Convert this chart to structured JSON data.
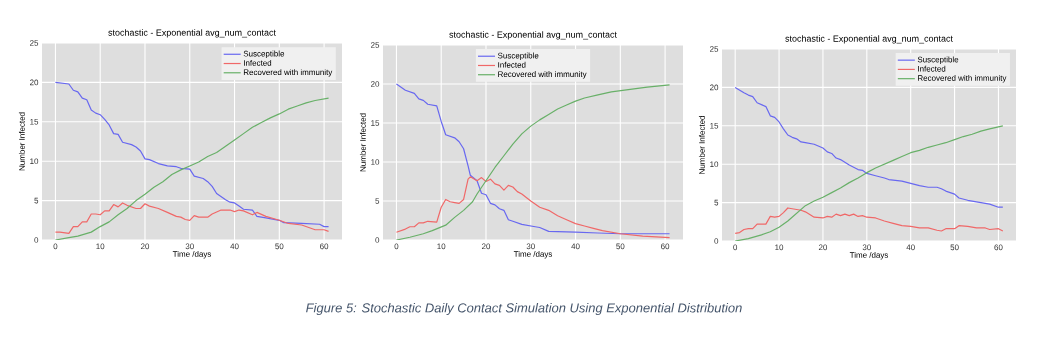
{
  "chart_data": [
    {
      "type": "line",
      "title": "stochastic - Exponential avg_num_contact",
      "xlabel": "Time /days",
      "ylabel": "Number Infected",
      "xlim": [
        -3,
        64
      ],
      "xticks": [
        0,
        10,
        20,
        30,
        40,
        50,
        60
      ],
      "ylim": [
        0,
        25
      ],
      "yticks": [
        0,
        5,
        10,
        15,
        20,
        25
      ],
      "grid": true,
      "legend": "top right",
      "marker": "none",
      "line_style": "solid",
      "annotations": [
        "Figure 5: Stochastic Daily Contact Simulation Using Exponential Distribution"
      ],
      "series": [
        {
          "name": "Susceptible",
          "color": "#6868f0",
          "x": [
            0,
            3,
            4,
            5,
            6,
            7,
            8,
            9,
            10,
            11,
            12,
            13,
            14,
            15,
            17,
            18,
            19,
            20,
            21,
            23,
            25,
            27,
            28,
            30,
            31,
            33,
            34,
            35,
            36,
            38,
            39,
            40,
            41,
            42,
            44,
            45,
            47,
            50,
            51,
            55,
            59,
            60,
            61
          ],
          "values": [
            20,
            19.8,
            19,
            18.8,
            18,
            17.8,
            16.5,
            16.1,
            15.9,
            15.3,
            14.6,
            13.5,
            13.4,
            12.4,
            12.1,
            11.8,
            11.3,
            10.3,
            10.2,
            9.7,
            9.4,
            9.3,
            9.1,
            9,
            8.1,
            7.8,
            7.4,
            6.8,
            5.9,
            5.1,
            4.8,
            4.7,
            4.3,
            3.9,
            3.8,
            3,
            2.8,
            2.5,
            2.2,
            2.1,
            2,
            1.7,
            1.7
          ]
        },
        {
          "name": "Infected",
          "color": "#f06868",
          "x": [
            0,
            1,
            3,
            4,
            5,
            6,
            7,
            8,
            9,
            10,
            11,
            12,
            13,
            14,
            15,
            16,
            18,
            19,
            20,
            21,
            23,
            25,
            27,
            28,
            29,
            30,
            31,
            32,
            34,
            35,
            37,
            39,
            40,
            41,
            42,
            44,
            45,
            47,
            50,
            52,
            55,
            58,
            60,
            61
          ],
          "values": [
            1,
            1,
            0.85,
            1.7,
            1.7,
            2.3,
            2.3,
            3.3,
            3.3,
            3.2,
            3.7,
            3.7,
            4.5,
            4.2,
            4.7,
            4.4,
            4,
            4,
            4.6,
            4.3,
            4,
            3.5,
            3,
            2.9,
            2.6,
            2.5,
            3.1,
            2.9,
            2.9,
            3.3,
            3.8,
            3.8,
            3.6,
            3.8,
            3.7,
            3.2,
            3.5,
            3,
            2.5,
            2.1,
            1.9,
            1.3,
            1.3,
            1.1
          ]
        },
        {
          "name": "Recovered with immunity",
          "color": "#68b068",
          "x": [
            0,
            3,
            5,
            8,
            10,
            12,
            14,
            16,
            18,
            20,
            22,
            24,
            26,
            28,
            30,
            32,
            34,
            36,
            38,
            40,
            42,
            44,
            46,
            48,
            50,
            52,
            54,
            56,
            58,
            61
          ],
          "values": [
            0,
            0.3,
            0.5,
            1,
            1.7,
            2.3,
            3.2,
            4,
            5,
            5.8,
            6.7,
            7.4,
            8.3,
            8.9,
            9.4,
            9.9,
            10.6,
            11.1,
            11.9,
            12.7,
            13.5,
            14.3,
            14.9,
            15.5,
            16,
            16.6,
            17,
            17.4,
            17.7,
            18
          ]
        }
      ]
    },
    {
      "type": "line",
      "title": "stochastic - Exponential avg_num_contact",
      "xlabel": "Time /days",
      "ylabel": "Number Infected",
      "xlim": [
        -3,
        64
      ],
      "xticks": [
        0,
        10,
        20,
        30,
        40,
        50,
        60
      ],
      "ylim": [
        0,
        25
      ],
      "yticks": [
        0,
        5,
        10,
        15,
        20,
        25
      ],
      "grid": true,
      "legend": "top",
      "marker": "none",
      "line_style": "solid",
      "series": [
        {
          "name": "Susceptible",
          "color": "#6868f0",
          "x": [
            0,
            2,
            4,
            5,
            6,
            7,
            9,
            10,
            11,
            13,
            14,
            15,
            16,
            16.5,
            18,
            19,
            20,
            21,
            22,
            23,
            24,
            25,
            26,
            28,
            31,
            32,
            34,
            40,
            45,
            50,
            61
          ],
          "values": [
            20,
            19.2,
            18.8,
            18.1,
            17.9,
            17.4,
            17.2,
            15.2,
            13.5,
            13.1,
            12.6,
            11.7,
            9.5,
            8.3,
            7.6,
            6,
            5.8,
            4.7,
            4.5,
            4,
            3.8,
            2.6,
            2.4,
            2,
            1.7,
            1.6,
            1.1,
            1,
            0.9,
            0.8,
            0.8
          ]
        },
        {
          "name": "Infected",
          "color": "#f06868",
          "x": [
            0,
            2,
            3,
            4,
            5,
            6,
            7,
            9,
            10,
            11,
            12,
            13,
            14,
            15,
            16,
            16.5,
            18,
            19,
            20,
            21,
            22,
            23,
            24,
            25,
            26,
            27,
            28,
            30,
            32,
            34,
            36,
            38,
            40,
            42,
            44,
            46,
            50,
            55,
            61
          ],
          "values": [
            1,
            1.4,
            1.7,
            1.7,
            2.2,
            2.2,
            2.4,
            2.3,
            4.2,
            5.2,
            4.9,
            4.8,
            4.7,
            5.2,
            7.8,
            8.1,
            7.6,
            8,
            7.5,
            7.8,
            7.2,
            7,
            6.4,
            7,
            6.8,
            6.2,
            5.9,
            5,
            4.2,
            3.8,
            3.1,
            2.6,
            2.1,
            1.8,
            1.5,
            1.2,
            0.8,
            0.5,
            0.3
          ]
        },
        {
          "name": "Recovered with immunity",
          "color": "#68b068",
          "x": [
            0,
            3,
            6,
            8,
            11,
            13,
            15,
            17,
            18,
            20,
            22,
            24,
            26,
            28,
            30,
            32,
            34,
            36,
            38,
            40,
            42,
            45,
            48,
            52,
            56,
            61
          ],
          "values": [
            0,
            0.35,
            0.8,
            1.2,
            1.9,
            2.9,
            3.8,
            4.9,
            5.9,
            7.6,
            9.3,
            10.8,
            12.3,
            13.6,
            14.6,
            15.4,
            16.1,
            16.8,
            17.3,
            17.8,
            18.2,
            18.6,
            19,
            19.3,
            19.6,
            19.9
          ]
        }
      ]
    },
    {
      "type": "line",
      "title": "stochastic - Exponential avg_num_contact",
      "xlabel": "Time /days",
      "ylabel": "Number Infected",
      "xlim": [
        -3,
        64
      ],
      "xticks": [
        0,
        10,
        20,
        30,
        40,
        50,
        60
      ],
      "ylim": [
        0,
        25
      ],
      "yticks": [
        0,
        5,
        10,
        15,
        20,
        25
      ],
      "grid": true,
      "legend": "top right",
      "marker": "none",
      "line_style": "solid",
      "series": [
        {
          "name": "Susceptible",
          "color": "#6868f0",
          "x": [
            0,
            2,
            3,
            4,
            5,
            7,
            8,
            9,
            10,
            11,
            12,
            13,
            14,
            15,
            16,
            18,
            20,
            21,
            22,
            23,
            24,
            26,
            27,
            28,
            29,
            30,
            32,
            34,
            35,
            38,
            40,
            42,
            44,
            46,
            47,
            48,
            50,
            51,
            53,
            55,
            57,
            58,
            60,
            61
          ],
          "values": [
            20,
            19.3,
            19,
            18.8,
            18,
            17.5,
            16.3,
            16.1,
            15.5,
            14.6,
            13.8,
            13.5,
            13.3,
            12.9,
            12.8,
            12.6,
            12.1,
            11.6,
            11.4,
            10.8,
            10.6,
            9.9,
            9.6,
            9.3,
            9.2,
            8.8,
            8.5,
            8.2,
            8,
            7.8,
            7.5,
            7.2,
            7,
            7,
            6.8,
            6.5,
            6.1,
            5.6,
            5.3,
            5.1,
            4.9,
            4.8,
            4.4,
            4.4
          ]
        },
        {
          "name": "Infected",
          "color": "#f06868",
          "x": [
            0,
            1,
            2,
            3,
            4,
            5,
            7,
            8,
            9,
            10,
            11,
            12,
            13,
            15,
            16,
            18,
            20,
            21,
            22,
            23,
            24,
            25,
            26,
            27,
            28,
            29,
            30,
            32,
            34,
            36,
            38,
            40,
            42,
            44,
            46,
            47,
            48,
            50,
            51,
            53,
            55,
            57,
            58,
            60,
            61
          ],
          "values": [
            1,
            1.1,
            1.5,
            1.6,
            1.6,
            2.2,
            2.2,
            3.2,
            3.1,
            3.2,
            3.7,
            4.3,
            4.2,
            4,
            3.8,
            3.1,
            3,
            3.2,
            3.1,
            3.5,
            3.3,
            3.5,
            3.3,
            3.5,
            3.2,
            3.3,
            3.1,
            3,
            2.6,
            2.3,
            2,
            1.9,
            1.7,
            1.7,
            1.4,
            1.3,
            1.6,
            1.6,
            2,
            1.9,
            1.7,
            1.7,
            1.5,
            1.6,
            1.3
          ]
        },
        {
          "name": "Recovered with immunity",
          "color": "#68b068",
          "x": [
            0,
            3,
            6,
            8,
            10,
            12,
            14,
            16,
            18,
            20,
            22,
            24,
            26,
            28,
            30,
            32,
            34,
            36,
            38,
            40,
            42,
            44,
            46,
            48,
            50,
            52,
            54,
            56,
            58,
            61
          ],
          "values": [
            0,
            0.3,
            0.8,
            1.2,
            1.8,
            2.6,
            3.6,
            4.6,
            5.2,
            5.7,
            6.3,
            6.9,
            7.6,
            8.2,
            8.9,
            9.5,
            10,
            10.5,
            11,
            11.5,
            11.8,
            12.2,
            12.5,
            12.8,
            13.2,
            13.6,
            13.9,
            14.3,
            14.6,
            15
          ]
        }
      ]
    }
  ]
}
